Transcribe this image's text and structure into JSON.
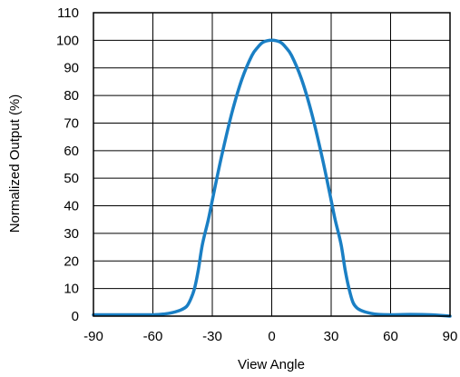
{
  "chart_data": {
    "type": "line",
    "title": "",
    "xlabel": "View Angle",
    "ylabel": "Normalized Output (%)",
    "xlim": [
      -90,
      90
    ],
    "ylim": [
      0,
      110
    ],
    "xticks": [
      -90,
      -60,
      -30,
      0,
      30,
      60,
      90
    ],
    "yticks": [
      0,
      10,
      20,
      30,
      40,
      50,
      60,
      70,
      80,
      90,
      100,
      110
    ],
    "grid": true,
    "legend": "none",
    "series": [
      {
        "color": "#1a7fc4",
        "x": [
          -90,
          -75,
          -60,
          -54,
          -50,
          -46,
          -43,
          -41,
          -39,
          -37,
          -35,
          -32,
          -30,
          -28,
          -25,
          -20,
          -15,
          -10,
          -7,
          -5,
          -3,
          -1,
          0,
          1,
          3,
          5,
          7,
          10,
          15,
          20,
          25,
          28,
          30,
          32,
          35,
          37,
          39,
          41,
          43,
          46,
          50,
          54,
          60,
          70,
          80,
          90
        ],
        "y": [
          0.5,
          0.5,
          0.5,
          0.8,
          1.3,
          2.2,
          3.5,
          6,
          10,
          17,
          26,
          35,
          42,
          49,
          59,
          74,
          86,
          94.5,
          97.5,
          99,
          99.7,
          100,
          100,
          100,
          99.7,
          99,
          97.5,
          94.5,
          86,
          74,
          59,
          49,
          42,
          35,
          26,
          17,
          10,
          5,
          3,
          1.8,
          1,
          0.6,
          0.5,
          0.6,
          0.5,
          0
        ]
      }
    ]
  }
}
